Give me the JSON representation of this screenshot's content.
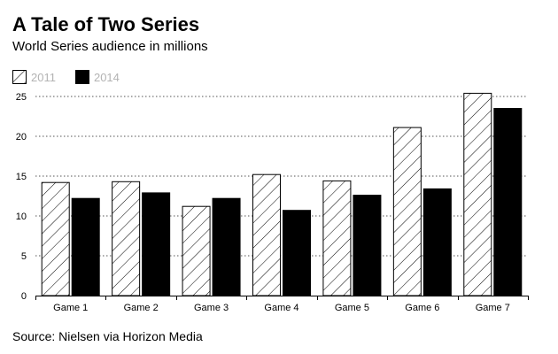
{
  "title": "A Tale of Two Series",
  "subtitle": "World Series audience in millions",
  "source": "Source: Nielsen via Horizon Media",
  "legend": [
    {
      "label": "2011",
      "pattern": "hatched",
      "color": "#ffffff"
    },
    {
      "label": "2014",
      "pattern": "solid",
      "color": "#000000"
    }
  ],
  "chart_data": {
    "type": "bar",
    "title": "A Tale of Two Series",
    "subtitle": "World Series audience in millions",
    "categories": [
      "Game 1",
      "Game 2",
      "Game 3",
      "Game 4",
      "Game 5",
      "Game 6",
      "Game 7"
    ],
    "series": [
      {
        "name": "2011",
        "pattern": "hatched",
        "values": [
          14.2,
          14.3,
          11.2,
          15.2,
          14.4,
          21.1,
          25.4
        ]
      },
      {
        "name": "2014",
        "pattern": "solid",
        "values": [
          12.2,
          12.9,
          12.2,
          10.7,
          12.6,
          13.4,
          23.5
        ]
      }
    ],
    "ylim": [
      0,
      25
    ],
    "yticks": [
      0,
      5,
      10,
      15,
      20,
      25
    ],
    "grid": "horizontal dotted",
    "legend_position": "top-left",
    "source": "Source: Nielsen via Horizon Media"
  }
}
